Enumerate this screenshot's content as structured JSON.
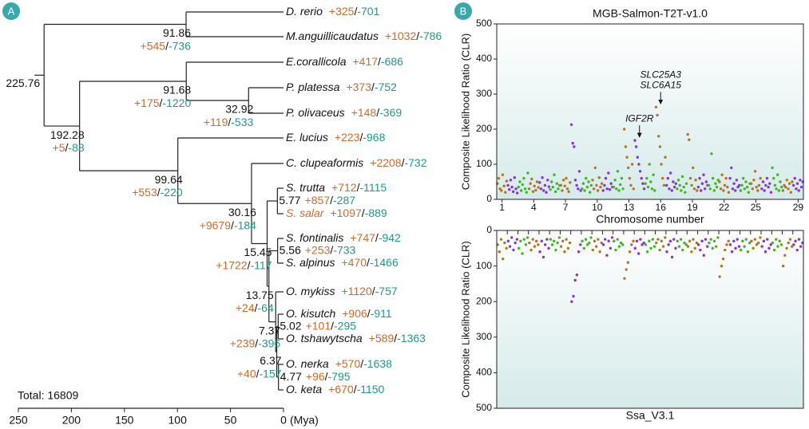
{
  "panel_labels": [
    "A",
    "B"
  ],
  "panel_a": {
    "taxa": [
      {
        "name": "D. rerio",
        "gain": "+325",
        "loss": "-701"
      },
      {
        "name": "M.anguillicaudatus",
        "gain": "+1032",
        "loss": "-786"
      },
      {
        "name": "E.corallicola",
        "gain": "+417",
        "loss": "-686"
      },
      {
        "name": "P. platessa",
        "gain": "+373",
        "loss": "-752"
      },
      {
        "name": "P. olivaceus",
        "gain": "+148",
        "loss": "-369"
      },
      {
        "name": "E. lucius",
        "gain": "+223",
        "loss": "-968"
      },
      {
        "name": "C. clupeaformis",
        "gain": "+2208",
        "loss": "-732"
      },
      {
        "name": "S. trutta",
        "gain": "+712",
        "loss": "-1115"
      },
      {
        "name": "S. salar",
        "gain": "+1097",
        "loss": "-889",
        "color": "#d2692a"
      },
      {
        "name": "S. fontinalis",
        "gain": "+747",
        "loss": "-942"
      },
      {
        "name": "S. alpinus",
        "gain": "+470",
        "loss": "-1466"
      },
      {
        "name": "O. mykiss",
        "gain": "+1120",
        "loss": "-757"
      },
      {
        "name": "O. kisutch",
        "gain": "+906",
        "loss": "-911"
      },
      {
        "name": "O. tshawytscha",
        "gain": "+589",
        "loss": "-1363"
      },
      {
        "name": "O. nerka",
        "gain": "+570",
        "loss": "-1638"
      },
      {
        "name": "O. keta",
        "gain": "+670",
        "loss": "-1150"
      }
    ],
    "nodes": [
      {
        "age": 225.76
      },
      {
        "age": 91.86,
        "gain": "+545",
        "loss": "-736"
      },
      {
        "age": 192.28,
        "gain": "+5",
        "loss": "-88"
      },
      {
        "age": 91.68,
        "gain": "+175",
        "loss": "-1220"
      },
      {
        "age": 32.92,
        "gain": "+119",
        "loss": "-533"
      },
      {
        "age": 99.64,
        "gain": "+553",
        "loss": "-220"
      },
      {
        "age": 30.16,
        "gain": "+9679",
        "loss": "-184"
      },
      {
        "age": 15.45,
        "gain": "+1722",
        "loss": "-117"
      },
      {
        "age": 5.77,
        "gain": "+857",
        "loss": "-287"
      },
      {
        "age": 13.75,
        "gain": "+24",
        "loss": "-64"
      },
      {
        "age": 5.56,
        "gain": "+253",
        "loss": "-733"
      },
      {
        "age": 7.37,
        "gain": "+239",
        "loss": "-396"
      },
      {
        "age": 6.37,
        "gain": "+40",
        "loss": "-157"
      },
      {
        "age": 5.02,
        "gain": "+101",
        "loss": "-295"
      },
      {
        "age": 4.77,
        "gain": "+96",
        "loss": "-795"
      }
    ],
    "separator": "/",
    "gain_color": "#d2692a",
    "loss_color": "#1f9a8a",
    "xlim": [
      250,
      0
    ],
    "xticks": [
      250,
      200,
      150,
      100,
      50,
      0
    ],
    "unit": "(Mya)",
    "total": "Total: 16809"
  },
  "chart_data": [
    {
      "type": "manhattan",
      "title": "MGB-Salmon-T2T-v1.0",
      "ylabel": "Composite Likelihood Ratio (CLR)",
      "xlabel": "Chromosome number",
      "categories": [
        1,
        null,
        null,
        4,
        null,
        null,
        7,
        null,
        null,
        10,
        null,
        null,
        13,
        null,
        null,
        16,
        null,
        null,
        19,
        null,
        null,
        22,
        null,
        null,
        25,
        null,
        null,
        null,
        29
      ],
      "colors": [
        "#b8741a",
        "#8f2fd6",
        "#3db81e"
      ],
      "ylim": [
        0,
        500
      ],
      "yticks": [
        0,
        100,
        200,
        300,
        400,
        500
      ],
      "invert_y": false,
      "annotations": [
        "SLC25A3",
        "SLC6A15",
        "IGF2R"
      ],
      "values": [
        [
          45,
          60,
          30,
          25,
          70,
          38,
          20,
          52
        ],
        [
          40,
          28,
          55,
          35,
          22,
          62,
          30,
          18
        ],
        [
          35,
          50,
          25,
          42,
          60,
          30,
          20,
          75
        ],
        [
          30,
          45,
          58,
          22,
          38,
          26,
          50,
          34
        ],
        [
          48,
          30,
          62,
          25,
          40,
          20,
          55,
          36
        ],
        [
          28,
          50,
          35,
          70,
          22,
          45,
          30,
          40
        ],
        [
          40,
          25,
          55,
          38,
          60,
          30,
          22,
          48
        ],
        [
          213,
          160,
          150,
          55,
          40,
          30,
          80,
          25
        ],
        [
          30,
          45,
          25,
          60,
          35,
          50,
          20,
          40
        ],
        [
          55,
          30,
          90,
          40,
          25,
          62,
          35,
          45
        ],
        [
          25,
          40,
          60,
          30,
          75,
          28,
          45,
          35
        ],
        [
          35,
          55,
          30,
          80,
          25,
          42,
          60,
          30
        ],
        [
          200,
          150,
          120,
          90,
          60,
          40,
          100,
          30
        ],
        [
          168,
          150,
          120,
          100,
          80,
          60,
          45,
          30
        ],
        [
          45,
          60,
          35,
          100,
          50,
          30,
          70,
          25
        ],
        [
          263,
          240,
          180,
          150,
          100,
          60,
          40,
          120
        ],
        [
          40,
          60,
          30,
          75,
          25,
          50,
          35,
          45
        ],
        [
          30,
          55,
          40,
          25,
          65,
          35,
          20,
          45
        ],
        [
          185,
          170,
          60,
          40,
          90,
          30,
          55,
          25
        ],
        [
          35,
          60,
          25,
          45,
          70,
          30,
          50,
          40
        ],
        [
          40,
          30,
          130,
          60,
          25,
          45,
          35,
          55
        ],
        [
          50,
          30,
          70,
          25,
          40,
          60,
          35,
          20
        ],
        [
          60,
          90,
          30,
          45,
          25,
          55,
          35,
          40
        ],
        [
          25,
          40,
          60,
          30,
          50,
          35,
          20,
          45
        ],
        [
          45,
          30,
          55,
          80,
          35,
          25,
          40,
          60
        ],
        [
          30,
          50,
          25,
          40,
          60,
          35,
          45,
          20
        ],
        [
          90,
          60,
          40,
          30,
          70,
          25,
          50,
          35
        ],
        [
          25,
          40,
          35,
          55,
          30,
          45,
          20,
          50
        ],
        [
          40,
          60,
          30,
          45,
          25,
          55,
          35,
          50
        ]
      ]
    },
    {
      "type": "manhattan",
      "ylabel": "Composite Likelihood Ratio (CLR)",
      "xlabel": "Ssa_V3.1",
      "colors": [
        "#b8741a",
        "#8f2fd6",
        "#3db81e"
      ],
      "ylim": [
        0,
        500
      ],
      "yticks": [
        0,
        100,
        200,
        300,
        400,
        500
      ],
      "invert_y": true,
      "values": [
        [
          40,
          60,
          25,
          80,
          35,
          50
        ],
        [
          30,
          45,
          20,
          55,
          35,
          25
        ],
        [
          50,
          30,
          65,
          25,
          40,
          20
        ],
        [
          35,
          55,
          25,
          45,
          30,
          40
        ],
        [
          60,
          30,
          75,
          40,
          25,
          50
        ],
        [
          25,
          40,
          30,
          55,
          35,
          20
        ],
        [
          45,
          30,
          60,
          25,
          50,
          35
        ],
        [
          200,
          185,
          140,
          125,
          60,
          40
        ],
        [
          30,
          50,
          25,
          40,
          35,
          20
        ],
        [
          55,
          30,
          45,
          25,
          60,
          35
        ],
        [
          40,
          25,
          70,
          30,
          50,
          20
        ],
        [
          30,
          55,
          25,
          45,
          35,
          40
        ],
        [
          135,
          110,
          90,
          60,
          40,
          30
        ],
        [
          50,
          30,
          65,
          25,
          40,
          35
        ],
        [
          40,
          60,
          30,
          50,
          25,
          45
        ],
        [
          35,
          25,
          55,
          30,
          45,
          20
        ],
        [
          60,
          40,
          30,
          75,
          25,
          50
        ],
        [
          30,
          45,
          25,
          55,
          35,
          40
        ],
        [
          45,
          30,
          60,
          25,
          50,
          35
        ],
        [
          40,
          55,
          30,
          70,
          25,
          45
        ],
        [
          35,
          25,
          50,
          30,
          45,
          20
        ],
        [
          130,
          100,
          80,
          55,
          40,
          30
        ],
        [
          40,
          60,
          30,
          50,
          25,
          45
        ],
        [
          55,
          30,
          45,
          25,
          60,
          35
        ],
        [
          30,
          50,
          25,
          40,
          35,
          20
        ],
        [
          45,
          30,
          60,
          25,
          50,
          40
        ],
        [
          35,
          55,
          25,
          45,
          30,
          40
        ],
        [
          100,
          70,
          50,
          35,
          25,
          45
        ],
        [
          40,
          30,
          55,
          25,
          45,
          35
        ]
      ]
    }
  ]
}
